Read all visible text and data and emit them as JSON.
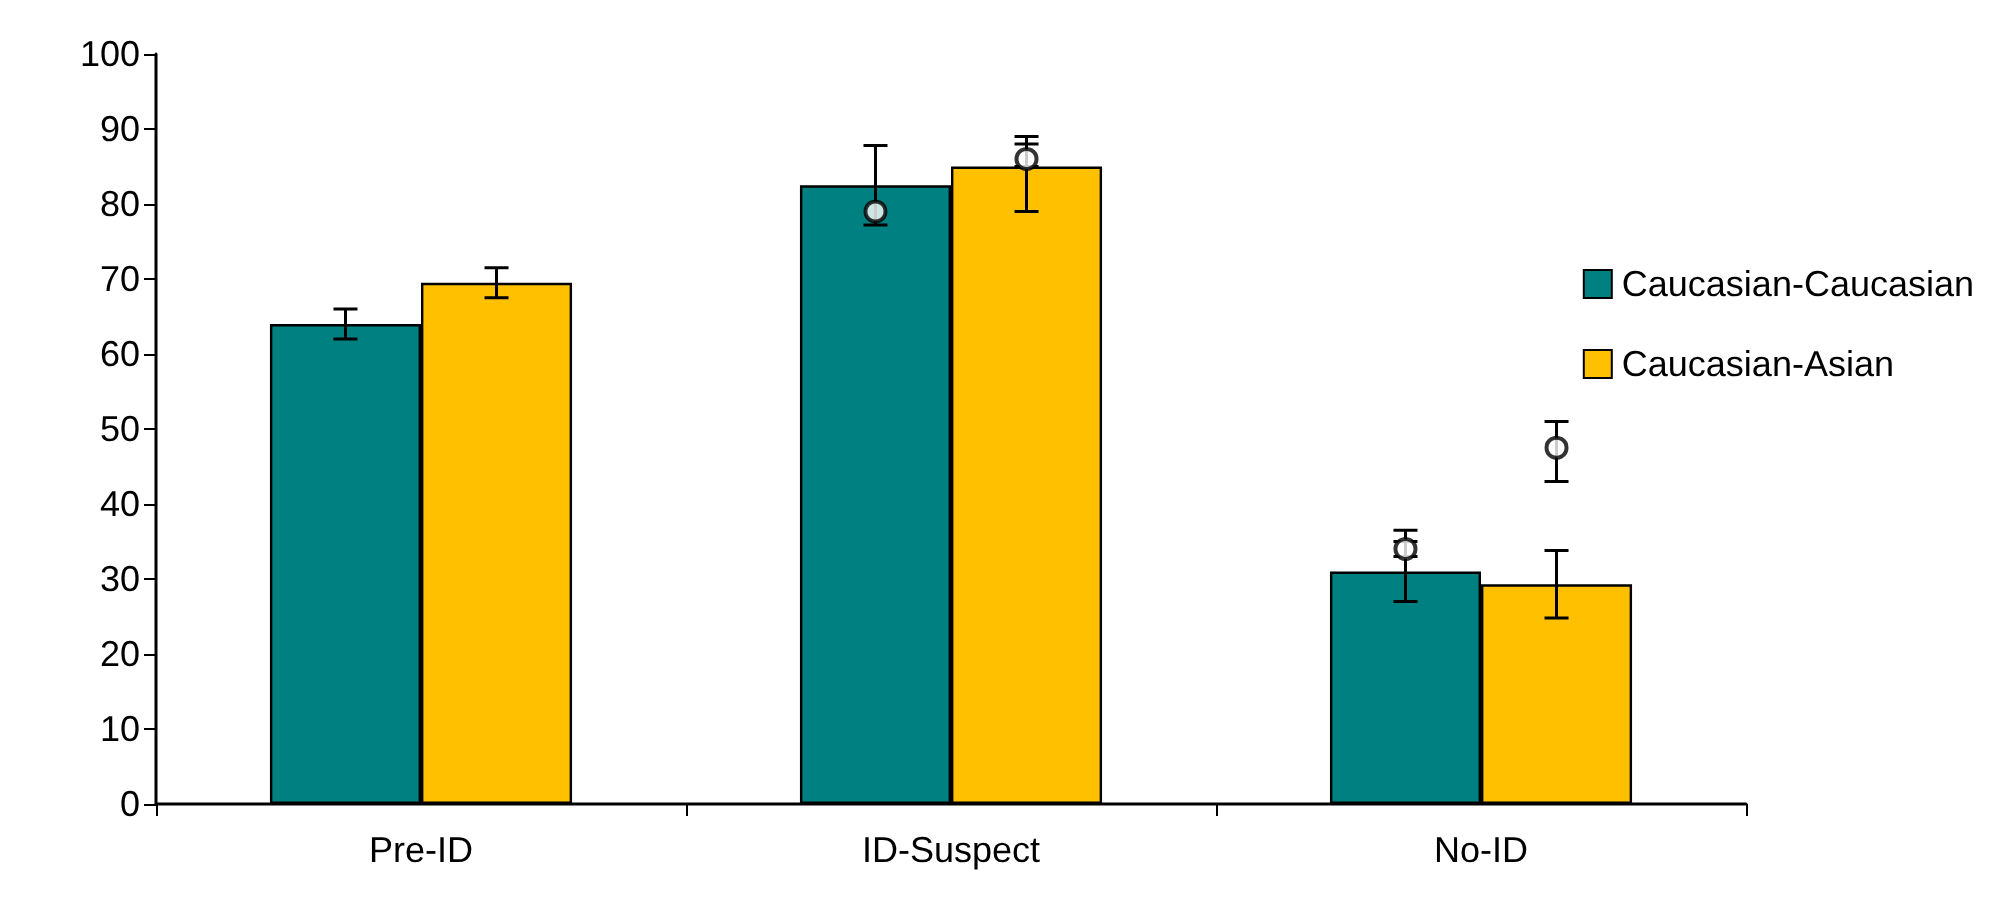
{
  "chart_data": {
    "type": "bar",
    "categories": [
      "Pre-ID",
      "ID-Suspect",
      "No-ID"
    ],
    "series": [
      {
        "name": "Caucasian-Caucasian",
        "color": "#008080",
        "values": [
          64,
          82.5,
          31
        ],
        "errors": [
          2,
          5.3,
          [
            27,
            35
          ]
        ]
      },
      {
        "name": "Caucasian-Asian",
        "color": "#ffc000",
        "values": [
          69.5,
          85,
          29.3
        ],
        "errors": [
          2,
          [
            79,
            88
          ],
          4.5
        ]
      },
      {
        "type": "scatter",
        "color": "#000000",
        "x": [
          "Pre-ID",
          "ID-Suspect",
          "No-ID"
        ],
        "values": [
          null,
          79,
          34
        ],
        "errors": [
          null,
          null,
          [
            33,
            36.5
          ]
        ]
      },
      {
        "type": "scatter",
        "color": "#000000",
        "x": [
          "Pre-ID",
          "ID-Suspect",
          "No-ID"
        ],
        "values": [
          null,
          86,
          47.5
        ],
        "errors": [
          null,
          [
            85,
            89
          ],
          [
            43,
            51
          ]
        ]
      }
    ],
    "ylim": [
      0,
      100
    ],
    "yticks": [
      0,
      10,
      20,
      30,
      40,
      50,
      60,
      70,
      80,
      90,
      100
    ],
    "grid": false,
    "legend": "right",
    "marker": "circle"
  }
}
